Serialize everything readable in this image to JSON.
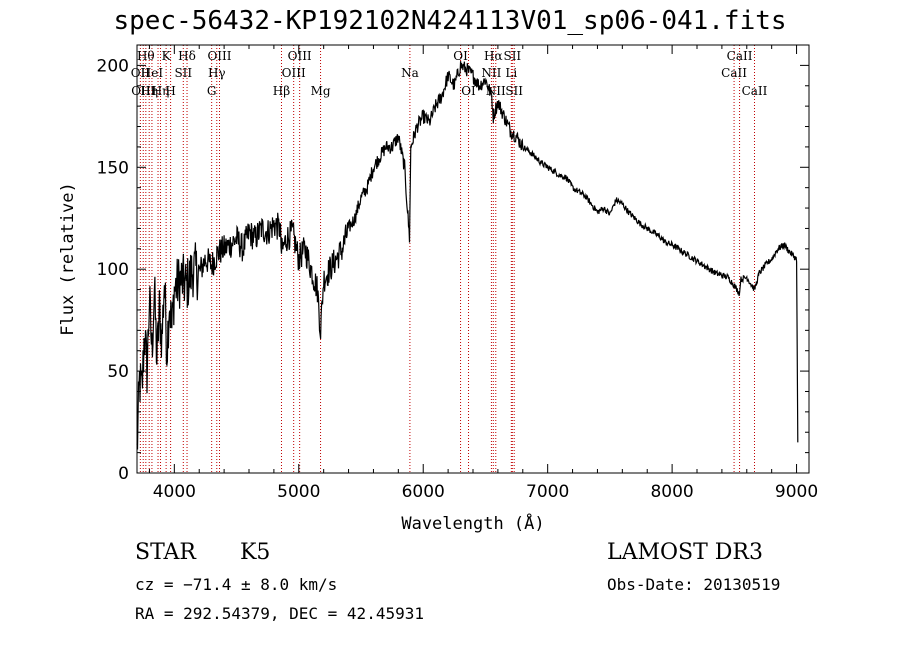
{
  "chart_data": {
    "type": "line",
    "title": "spec-56432-KP192102N424113V01_sp06-041.fits",
    "xlabel": "Wavelength (Å)",
    "ylabel": "Flux (relative)",
    "xlim": [
      3700,
      9100
    ],
    "ylim": [
      0,
      210
    ],
    "xticks": [
      4000,
      5000,
      6000,
      7000,
      8000,
      9000
    ],
    "yticks": [
      0,
      50,
      100,
      150,
      200
    ],
    "series": [
      {
        "name": "flux",
        "x": [
          3700,
          3720,
          3740,
          3760,
          3780,
          3800,
          3820,
          3840,
          3860,
          3880,
          3900,
          3920,
          3940,
          3960,
          3980,
          4000,
          4050,
          4100,
          4150,
          4200,
          4250,
          4300,
          4350,
          4400,
          4450,
          4500,
          4550,
          4600,
          4650,
          4700,
          4750,
          4800,
          4850,
          4861,
          4900,
          4950,
          5000,
          5050,
          5100,
          5150,
          5175,
          5200,
          5250,
          5300,
          5350,
          5400,
          5450,
          5500,
          5550,
          5600,
          5650,
          5700,
          5750,
          5800,
          5850,
          5890,
          5900,
          5950,
          6000,
          6050,
          6100,
          6150,
          6200,
          6250,
          6300,
          6350,
          6400,
          6450,
          6500,
          6550,
          6563,
          6600,
          6650,
          6700,
          6750,
          6800,
          6850,
          6900,
          6950,
          7000,
          7050,
          7100,
          7150,
          7200,
          7250,
          7300,
          7350,
          7400,
          7450,
          7500,
          7550,
          7600,
          7650,
          7700,
          7750,
          7800,
          7850,
          7900,
          7950,
          8000,
          8050,
          8100,
          8150,
          8200,
          8250,
          8300,
          8350,
          8400,
          8450,
          8500,
          8542,
          8550,
          8600,
          8662,
          8700,
          8750,
          8800,
          8850,
          8900,
          8950,
          9000,
          9010
        ],
        "y": [
          10,
          45,
          40,
          70,
          50,
          85,
          60,
          90,
          55,
          80,
          65,
          95,
          60,
          85,
          70,
          90,
          95,
          92,
          100,
          98,
          105,
          102,
          108,
          110,
          112,
          115,
          110,
          118,
          115,
          120,
          118,
          122,
          120,
          108,
          115,
          118,
          105,
          110,
          100,
          90,
          70,
          95,
          100,
          105,
          110,
          120,
          125,
          135,
          140,
          150,
          155,
          160,
          160,
          165,
          150,
          115,
          160,
          170,
          175,
          172,
          180,
          185,
          195,
          190,
          200,
          198,
          195,
          190,
          193,
          185,
          175,
          182,
          175,
          168,
          165,
          160,
          158,
          155,
          152,
          150,
          148,
          146,
          145,
          140,
          138,
          136,
          132,
          128,
          130,
          127,
          134,
          132,
          128,
          125,
          122,
          120,
          118,
          116,
          113,
          112,
          110,
          108,
          106,
          104,
          102,
          100,
          98,
          97,
          96,
          92,
          88,
          95,
          96,
          90,
          98,
          102,
          105,
          110,
          112,
          108,
          105,
          15
        ]
      }
    ],
    "lines": [
      {
        "w": 3727,
        "label": "OII",
        "row": 1
      },
      {
        "w": 3750,
        "label": "OIII",
        "row": 2
      },
      {
        "w": 3771,
        "label": "Hθ",
        "row": 0
      },
      {
        "w": 3798,
        "label": "Hη",
        "row": 2
      },
      {
        "w": 3820,
        "label": "HeI",
        "row": 1
      },
      {
        "w": 3869,
        "label": "",
        "row": 1
      },
      {
        "w": 3889,
        "label": "Hη",
        "row": 2
      },
      {
        "w": 3934,
        "label": "K",
        "row": 0
      },
      {
        "w": 3970,
        "label": "H",
        "row": 2
      },
      {
        "w": 4072,
        "label": "SII",
        "row": 1
      },
      {
        "w": 4102,
        "label": "Hδ",
        "row": 0
      },
      {
        "w": 4300,
        "label": "G",
        "row": 2
      },
      {
        "w": 4341,
        "label": "Hγ",
        "row": 1
      },
      {
        "w": 4363,
        "label": "OIII",
        "row": 0
      },
      {
        "w": 4861,
        "label": "Hβ",
        "row": 2
      },
      {
        "w": 4959,
        "label": "OIII",
        "row": 1
      },
      {
        "w": 5007,
        "label": "OIII",
        "row": 0
      },
      {
        "w": 5175,
        "label": "Mg",
        "row": 2
      },
      {
        "w": 5893,
        "label": "Na",
        "row": 1
      },
      {
        "w": 6300,
        "label": "OI",
        "row": 0
      },
      {
        "w": 6364,
        "label": "OI",
        "row": 2
      },
      {
        "w": 6548,
        "label": "NII",
        "row": 1
      },
      {
        "w": 6563,
        "label": "Hα",
        "row": 0
      },
      {
        "w": 6583,
        "label": "NII",
        "row": 2
      },
      {
        "w": 6708,
        "label": "Li",
        "row": 1
      },
      {
        "w": 6716,
        "label": "SII",
        "row": 0
      },
      {
        "w": 6731,
        "label": "SII",
        "row": 2
      },
      {
        "w": 8498,
        "label": "CaII",
        "row": 1
      },
      {
        "w": 8542,
        "label": "CaII",
        "row": 0
      },
      {
        "w": 8662,
        "label": "CaII",
        "row": 2
      }
    ]
  },
  "info": {
    "class": "STAR",
    "subclass": "K5",
    "survey": "LAMOST DR3",
    "cz": "cz = −71.4 ± 8.0 km/s",
    "obs_date": "Obs-Date: 20130519",
    "coords": "RA = 292.54379, DEC =  42.45931"
  }
}
